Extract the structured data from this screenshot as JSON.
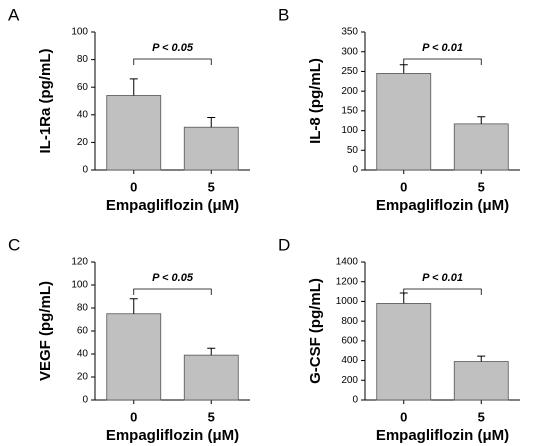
{
  "chart_data": [
    {
      "type": "bar",
      "panel": "A",
      "ylabel": "IL-1Ra (pg/mL)",
      "xlabel": "Empagliflozin (μM)",
      "annotation": "P < 0.05",
      "categories": [
        "0",
        "5"
      ],
      "values": [
        54,
        31
      ],
      "errors": [
        12,
        7
      ],
      "color": "#c0c0c0",
      "ylim": [
        0,
        100
      ],
      "yticks": [
        0,
        20,
        40,
        60,
        80,
        100
      ]
    },
    {
      "type": "bar",
      "panel": "B",
      "ylabel": "IL-8 (pg/mL)",
      "xlabel": "Empagliflozin (μM)",
      "annotation": "P < 0.01",
      "categories": [
        "0",
        "5"
      ],
      "values": [
        245,
        117
      ],
      "errors": [
        22,
        18
      ],
      "color": "#c0c0c0",
      "ylim": [
        0,
        350
      ],
      "yticks": [
        0,
        50,
        100,
        150,
        200,
        250,
        300,
        350
      ]
    },
    {
      "type": "bar",
      "panel": "C",
      "ylabel": "VEGF (pg/mL)",
      "xlabel": "Empagliflozin (μM)",
      "annotation": "P < 0.05",
      "categories": [
        "0",
        "5"
      ],
      "values": [
        75,
        39
      ],
      "errors": [
        13,
        6
      ],
      "color": "#c0c0c0",
      "ylim": [
        0,
        120
      ],
      "yticks": [
        0,
        20,
        40,
        60,
        80,
        100,
        120
      ]
    },
    {
      "type": "bar",
      "panel": "D",
      "ylabel": "G-CSF (pg/mL)",
      "xlabel": "Empagliflozin (μM)",
      "annotation": "P < 0.01",
      "categories": [
        "0",
        "5"
      ],
      "values": [
        980,
        390
      ],
      "errors": [
        105,
        55
      ],
      "color": "#c0c0c0",
      "ylim": [
        0,
        1400
      ],
      "yticks": [
        0,
        200,
        400,
        600,
        800,
        1000,
        1200,
        1400
      ]
    }
  ]
}
